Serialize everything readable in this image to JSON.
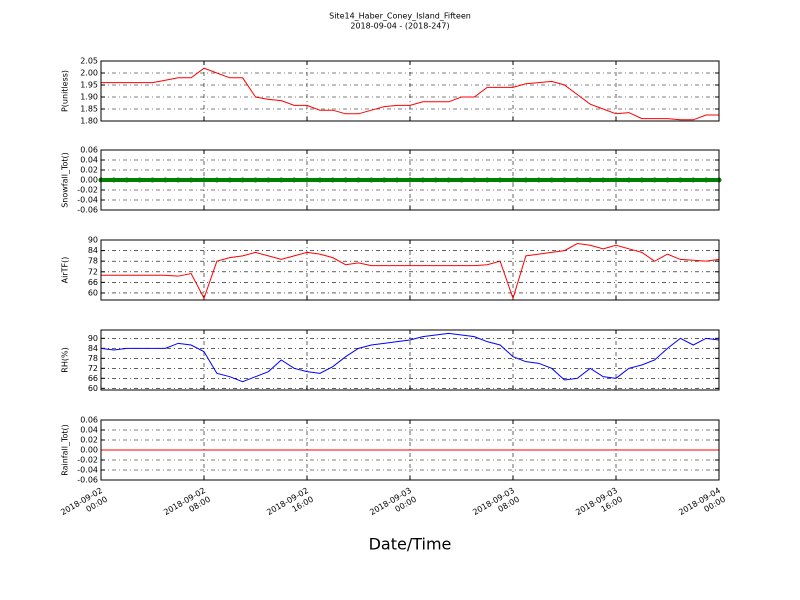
{
  "chart_data": [
    {
      "type": "line",
      "title": "Site14_Haber_Coney_Island_Fifteen",
      "subtitle": "2018-09-04 - (2018-247)",
      "ylabel": "P(unitless)",
      "x": [
        "2018-09-02 00:00",
        "2018-09-02 01:00",
        "2018-09-02 02:00",
        "2018-09-02 03:00",
        "2018-09-02 04:00",
        "2018-09-02 05:00",
        "2018-09-02 06:00",
        "2018-09-02 07:00",
        "2018-09-02 08:00",
        "2018-09-02 09:00",
        "2018-09-02 10:00",
        "2018-09-02 11:00",
        "2018-09-02 12:00",
        "2018-09-02 13:00",
        "2018-09-02 14:00",
        "2018-09-02 15:00",
        "2018-09-02 16:00",
        "2018-09-02 17:00",
        "2018-09-02 18:00",
        "2018-09-02 19:00",
        "2018-09-02 20:00",
        "2018-09-02 21:00",
        "2018-09-02 22:00",
        "2018-09-02 23:00",
        "2018-09-03 00:00",
        "2018-09-03 01:00",
        "2018-09-03 02:00",
        "2018-09-03 03:00",
        "2018-09-03 04:00",
        "2018-09-03 05:00",
        "2018-09-03 06:00",
        "2018-09-03 07:00",
        "2018-09-03 08:00",
        "2018-09-03 09:00",
        "2018-09-03 10:00",
        "2018-09-03 11:00",
        "2018-09-03 12:00",
        "2018-09-03 13:00",
        "2018-09-03 14:00",
        "2018-09-03 15:00",
        "2018-09-03 16:00",
        "2018-09-03 17:00",
        "2018-09-03 18:00",
        "2018-09-03 19:00",
        "2018-09-03 20:00",
        "2018-09-03 21:00",
        "2018-09-03 22:00",
        "2018-09-03 23:00",
        "2018-09-04 00:00"
      ],
      "xlim": [
        "2018-09-02 00:00",
        "2018-09-04 00:00"
      ],
      "xticks": [
        "2018-09-02 00:00",
        "2018-09-02 08:00",
        "2018-09-02 16:00",
        "2018-09-03 00:00",
        "2018-09-03 08:00",
        "2018-09-03 16:00",
        "2018-09-04 00:00"
      ],
      "ylim": [
        1.8,
        2.05
      ],
      "yticks": [
        {
          "value": 1.8,
          "label": "1.80"
        },
        1.85,
        {
          "value": 1.9,
          "label": "1.90"
        },
        1.95,
        {
          "value": 2,
          "label": "2.00"
        },
        2.05
      ],
      "grid": true,
      "series": [
        {
          "color": "#ff0000",
          "values": [
            1.96,
            1.96,
            1.96,
            1.96,
            1.96,
            1.97,
            1.98,
            1.98,
            2.02,
            2.0,
            1.98,
            1.98,
            1.9,
            1.89,
            1.885,
            1.865,
            1.865,
            1.845,
            1.845,
            1.83,
            1.83,
            1.845,
            1.86,
            1.865,
            1.865,
            1.88,
            1.88,
            1.88,
            1.9,
            1.9,
            1.94,
            1.94,
            1.94,
            1.955,
            1.96,
            1.965,
            1.95,
            1.91,
            1.87,
            1.85,
            1.83,
            1.835,
            1.81,
            1.81,
            1.81,
            1.805,
            1.805,
            1.825,
            1.825
          ]
        }
      ]
    },
    {
      "type": "line",
      "ylabel": "Snowfall_Tot()",
      "x": [
        "2018-09-02 00:00",
        "2018-09-02 01:00",
        "2018-09-02 02:00",
        "2018-09-02 03:00",
        "2018-09-02 04:00",
        "2018-09-02 05:00",
        "2018-09-02 06:00",
        "2018-09-02 07:00",
        "2018-09-02 08:00",
        "2018-09-02 09:00",
        "2018-09-02 10:00",
        "2018-09-02 11:00",
        "2018-09-02 12:00",
        "2018-09-02 13:00",
        "2018-09-02 14:00",
        "2018-09-02 15:00",
        "2018-09-02 16:00",
        "2018-09-02 17:00",
        "2018-09-02 18:00",
        "2018-09-02 19:00",
        "2018-09-02 20:00",
        "2018-09-02 21:00",
        "2018-09-02 22:00",
        "2018-09-02 23:00",
        "2018-09-03 00:00",
        "2018-09-03 01:00",
        "2018-09-03 02:00",
        "2018-09-03 03:00",
        "2018-09-03 04:00",
        "2018-09-03 05:00",
        "2018-09-03 06:00",
        "2018-09-03 07:00",
        "2018-09-03 08:00",
        "2018-09-03 09:00",
        "2018-09-03 10:00",
        "2018-09-03 11:00",
        "2018-09-03 12:00",
        "2018-09-03 13:00",
        "2018-09-03 14:00",
        "2018-09-03 15:00",
        "2018-09-03 16:00",
        "2018-09-03 17:00",
        "2018-09-03 18:00",
        "2018-09-03 19:00",
        "2018-09-03 20:00",
        "2018-09-03 21:00",
        "2018-09-03 22:00",
        "2018-09-03 23:00",
        "2018-09-04 00:00"
      ],
      "xlim": [
        "2018-09-02 00:00",
        "2018-09-04 00:00"
      ],
      "xticks": [
        "2018-09-02 00:00",
        "2018-09-02 08:00",
        "2018-09-02 16:00",
        "2018-09-03 00:00",
        "2018-09-03 08:00",
        "2018-09-03 16:00",
        "2018-09-04 00:00"
      ],
      "ylim": [
        -0.06,
        0.06
      ],
      "yticks": [
        -0.06,
        -0.04,
        -0.02,
        {
          "value": 0,
          "label": "0.00"
        },
        0.02,
        0.04,
        0.06
      ],
      "grid": true,
      "series": [
        {
          "color": "#008000",
          "marker": true,
          "values": [
            0,
            0,
            0,
            0,
            0,
            0,
            0,
            0,
            0,
            0,
            0,
            0,
            0,
            0,
            0,
            0,
            0,
            0,
            0,
            0,
            0,
            0,
            0,
            0,
            0,
            0,
            0,
            0,
            0,
            0,
            0,
            0,
            0,
            0,
            0,
            0,
            0,
            0,
            0,
            0,
            0,
            0,
            0,
            0,
            0,
            0,
            0,
            0,
            0
          ]
        }
      ]
    },
    {
      "type": "line",
      "ylabel": "AirTF()",
      "x": [
        "2018-09-02 00:00",
        "2018-09-02 01:00",
        "2018-09-02 02:00",
        "2018-09-02 03:00",
        "2018-09-02 04:00",
        "2018-09-02 05:00",
        "2018-09-02 06:00",
        "2018-09-02 07:00",
        "2018-09-02 08:00",
        "2018-09-02 09:00",
        "2018-09-02 10:00",
        "2018-09-02 11:00",
        "2018-09-02 12:00",
        "2018-09-02 13:00",
        "2018-09-02 14:00",
        "2018-09-02 15:00",
        "2018-09-02 16:00",
        "2018-09-02 17:00",
        "2018-09-02 18:00",
        "2018-09-02 19:00",
        "2018-09-02 20:00",
        "2018-09-02 21:00",
        "2018-09-02 22:00",
        "2018-09-02 23:00",
        "2018-09-03 00:00",
        "2018-09-03 01:00",
        "2018-09-03 02:00",
        "2018-09-03 03:00",
        "2018-09-03 04:00",
        "2018-09-03 05:00",
        "2018-09-03 06:00",
        "2018-09-03 07:00",
        "2018-09-03 08:00",
        "2018-09-03 09:00",
        "2018-09-03 10:00",
        "2018-09-03 11:00",
        "2018-09-03 12:00",
        "2018-09-03 13:00",
        "2018-09-03 14:00",
        "2018-09-03 15:00",
        "2018-09-03 16:00",
        "2018-09-03 17:00",
        "2018-09-03 18:00",
        "2018-09-03 19:00",
        "2018-09-03 20:00",
        "2018-09-03 21:00",
        "2018-09-03 22:00",
        "2018-09-03 23:00",
        "2018-09-04 00:00"
      ],
      "xlim": [
        "2018-09-02 00:00",
        "2018-09-04 00:00"
      ],
      "xticks": [
        "2018-09-02 00:00",
        "2018-09-02 08:00",
        "2018-09-02 16:00",
        "2018-09-03 00:00",
        "2018-09-03 08:00",
        "2018-09-03 16:00",
        "2018-09-04 00:00"
      ],
      "ylim": [
        56,
        90
      ],
      "yticks": [
        60,
        66,
        72,
        78,
        84,
        90
      ],
      "grid": true,
      "series": [
        {
          "color": "#ff0000",
          "values": [
            70,
            70,
            70,
            70,
            70,
            70,
            69.5,
            71,
            57,
            78,
            80,
            81,
            83,
            81,
            79,
            81,
            83,
            82,
            80,
            76,
            77,
            75.5,
            75.5,
            75.5,
            75.5,
            75.5,
            75.5,
            75.5,
            75.5,
            75.5,
            76,
            78,
            57,
            81,
            82,
            83,
            84,
            88,
            87,
            85,
            87,
            85,
            83,
            78,
            82,
            79,
            78.5,
            78,
            79
          ]
        }
      ]
    },
    {
      "type": "line",
      "ylabel": "RH(%)",
      "x": [
        "2018-09-02 00:00",
        "2018-09-02 01:00",
        "2018-09-02 02:00",
        "2018-09-02 03:00",
        "2018-09-02 04:00",
        "2018-09-02 05:00",
        "2018-09-02 06:00",
        "2018-09-02 07:00",
        "2018-09-02 08:00",
        "2018-09-02 09:00",
        "2018-09-02 10:00",
        "2018-09-02 11:00",
        "2018-09-02 12:00",
        "2018-09-02 13:00",
        "2018-09-02 14:00",
        "2018-09-02 15:00",
        "2018-09-02 16:00",
        "2018-09-02 17:00",
        "2018-09-02 18:00",
        "2018-09-02 19:00",
        "2018-09-02 20:00",
        "2018-09-02 21:00",
        "2018-09-02 22:00",
        "2018-09-02 23:00",
        "2018-09-03 00:00",
        "2018-09-03 01:00",
        "2018-09-03 02:00",
        "2018-09-03 03:00",
        "2018-09-03 04:00",
        "2018-09-03 05:00",
        "2018-09-03 06:00",
        "2018-09-03 07:00",
        "2018-09-03 08:00",
        "2018-09-03 09:00",
        "2018-09-03 10:00",
        "2018-09-03 11:00",
        "2018-09-03 12:00",
        "2018-09-03 13:00",
        "2018-09-03 14:00",
        "2018-09-03 15:00",
        "2018-09-03 16:00",
        "2018-09-03 17:00",
        "2018-09-03 18:00",
        "2018-09-03 19:00",
        "2018-09-03 20:00",
        "2018-09-03 21:00",
        "2018-09-03 22:00",
        "2018-09-03 23:00",
        "2018-09-04 00:00"
      ],
      "xlim": [
        "2018-09-02 00:00",
        "2018-09-04 00:00"
      ],
      "xticks": [
        "2018-09-02 00:00",
        "2018-09-02 08:00",
        "2018-09-02 16:00",
        "2018-09-03 00:00",
        "2018-09-03 08:00",
        "2018-09-03 16:00",
        "2018-09-04 00:00"
      ],
      "ylim": [
        59,
        95
      ],
      "yticks": [
        60,
        66,
        72,
        78,
        84,
        90
      ],
      "grid": true,
      "series": [
        {
          "color": "#0000ff",
          "values": [
            84,
            83,
            84,
            84,
            84,
            84,
            87,
            86,
            82,
            69,
            67,
            64,
            67,
            70,
            77,
            72,
            70,
            69,
            73,
            79,
            84,
            86,
            87,
            88,
            89,
            91,
            92,
            93,
            92,
            91,
            88,
            86,
            79,
            76,
            75,
            72,
            65,
            66,
            72,
            67,
            66,
            72,
            74,
            77,
            84,
            90,
            86,
            90,
            89
          ]
        }
      ]
    },
    {
      "type": "line",
      "ylabel": "Rainfall_Tot()",
      "xlabel": "Date/Time",
      "x": [
        "2018-09-02 00:00",
        "2018-09-02 01:00",
        "2018-09-02 02:00",
        "2018-09-02 03:00",
        "2018-09-02 04:00",
        "2018-09-02 05:00",
        "2018-09-02 06:00",
        "2018-09-02 07:00",
        "2018-09-02 08:00",
        "2018-09-02 09:00",
        "2018-09-02 10:00",
        "2018-09-02 11:00",
        "2018-09-02 12:00",
        "2018-09-02 13:00",
        "2018-09-02 14:00",
        "2018-09-02 15:00",
        "2018-09-02 16:00",
        "2018-09-02 17:00",
        "2018-09-02 18:00",
        "2018-09-02 19:00",
        "2018-09-02 20:00",
        "2018-09-02 21:00",
        "2018-09-02 22:00",
        "2018-09-02 23:00",
        "2018-09-03 00:00",
        "2018-09-03 01:00",
        "2018-09-03 02:00",
        "2018-09-03 03:00",
        "2018-09-03 04:00",
        "2018-09-03 05:00",
        "2018-09-03 06:00",
        "2018-09-03 07:00",
        "2018-09-03 08:00",
        "2018-09-03 09:00",
        "2018-09-03 10:00",
        "2018-09-03 11:00",
        "2018-09-03 12:00",
        "2018-09-03 13:00",
        "2018-09-03 14:00",
        "2018-09-03 15:00",
        "2018-09-03 16:00",
        "2018-09-03 17:00",
        "2018-09-03 18:00",
        "2018-09-03 19:00",
        "2018-09-03 20:00",
        "2018-09-03 21:00",
        "2018-09-03 22:00",
        "2018-09-03 23:00",
        "2018-09-04 00:00"
      ],
      "xlim": [
        "2018-09-02 00:00",
        "2018-09-04 00:00"
      ],
      "xticks": [
        "2018-09-02 00:00",
        "2018-09-02 08:00",
        "2018-09-02 16:00",
        "2018-09-03 00:00",
        "2018-09-03 08:00",
        "2018-09-03 16:00",
        "2018-09-04 00:00"
      ],
      "ylim": [
        -0.06,
        0.06
      ],
      "yticks": [
        -0.06,
        -0.04,
        -0.02,
        {
          "value": 0,
          "label": "0.00"
        },
        0.02,
        0.04,
        0.06
      ],
      "grid": true,
      "series": [
        {
          "color": "#ff0000",
          "values": [
            0,
            0,
            0,
            0,
            0,
            0,
            0,
            0,
            0,
            0,
            0,
            0,
            0,
            0,
            0,
            0,
            0,
            0,
            0,
            0,
            0,
            0,
            0,
            0,
            0,
            0,
            0,
            0,
            0,
            0,
            0,
            0,
            0,
            0,
            0,
            0,
            0,
            0,
            0,
            0,
            0,
            0,
            0,
            0,
            0,
            0,
            0,
            0,
            0
          ]
        }
      ]
    }
  ]
}
